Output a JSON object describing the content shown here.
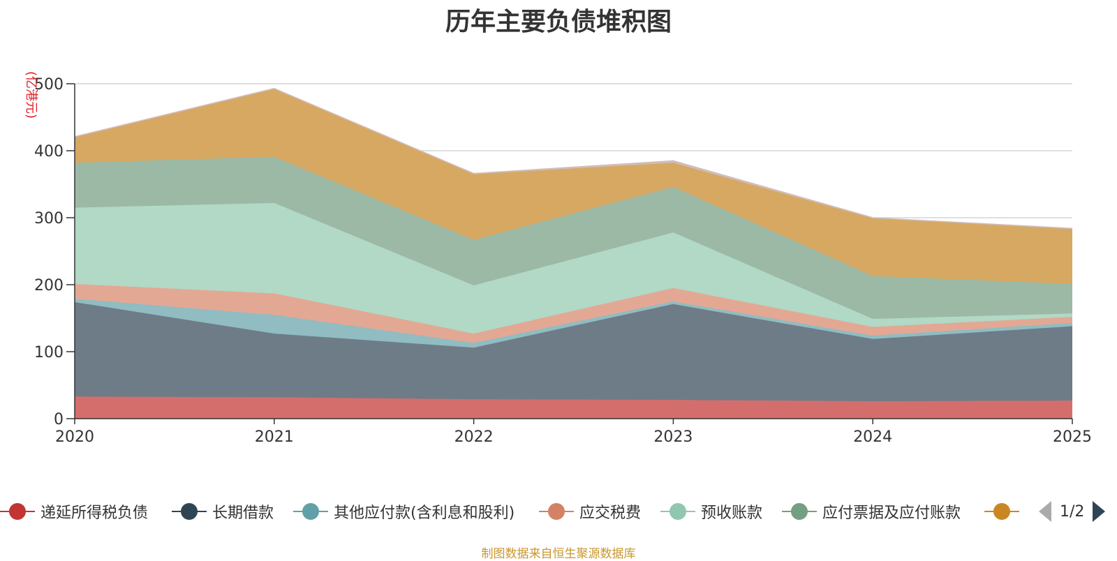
{
  "chart_data": {
    "type": "area",
    "stacked": true,
    "title": "历年主要负债堆积图",
    "unit_label": "(亿港元)",
    "x": [
      "2020",
      "2021",
      "2022",
      "2023",
      "2024",
      "2025"
    ],
    "ylim": [
      0,
      500
    ],
    "yticks": [
      0,
      100,
      200,
      300,
      400,
      500
    ],
    "grid": true,
    "series": [
      {
        "name": "递延所得税负债",
        "color": "#c23531",
        "fill": "#d46e6c",
        "values": [
          33,
          32,
          29,
          28,
          26,
          27
        ]
      },
      {
        "name": "长期借款",
        "color": "#2f4554",
        "fill": "#6e7c88",
        "values": [
          141,
          95,
          77,
          143,
          93,
          111
        ]
      },
      {
        "name": "其他应付款(含利息和股利)",
        "color": "#61a0a8",
        "fill": "#90bcc2",
        "values": [
          5,
          28,
          7,
          4,
          5,
          5
        ]
      },
      {
        "name": "应交税费",
        "color": "#d48265",
        "fill": "#e3a893",
        "values": [
          22,
          32,
          14,
          20,
          13,
          9
        ]
      },
      {
        "name": "预收账款",
        "color": "#91c7ae",
        "fill": "#b2d8c6",
        "values": [
          114,
          135,
          72,
          83,
          12,
          5
        ]
      },
      {
        "name": "应付票据及应付账款",
        "color": "#749f83",
        "fill": "#9cb9a6",
        "values": [
          67,
          69,
          68,
          68,
          64,
          44
        ]
      },
      {
        "name": "",
        "color": "#ca8622",
        "fill": "#d7a862",
        "values": [
          38,
          101,
          98,
          36,
          86,
          82
        ]
      },
      {
        "name": "",
        "color": "#bda29a",
        "fill": "#d0bdb8",
        "values": [
          1,
          1,
          1,
          3,
          1,
          1
        ]
      }
    ]
  },
  "legend": {
    "visible_items": [
      {
        "name": "递延所得税负债",
        "color": "#c23531"
      },
      {
        "name": "长期借款",
        "color": "#2f4554"
      },
      {
        "name": "其他应付款(含利息和股利)",
        "color": "#61a0a8"
      },
      {
        "name": "应交税费",
        "color": "#d48265"
      },
      {
        "name": "预收账款",
        "color": "#91c7ae"
      },
      {
        "name": "应付票据及应付账款",
        "color": "#749f83"
      },
      {
        "name": "",
        "color": "#ca8622"
      }
    ],
    "page": "1/2"
  },
  "source": "制图数据来自恒生聚源数据库"
}
